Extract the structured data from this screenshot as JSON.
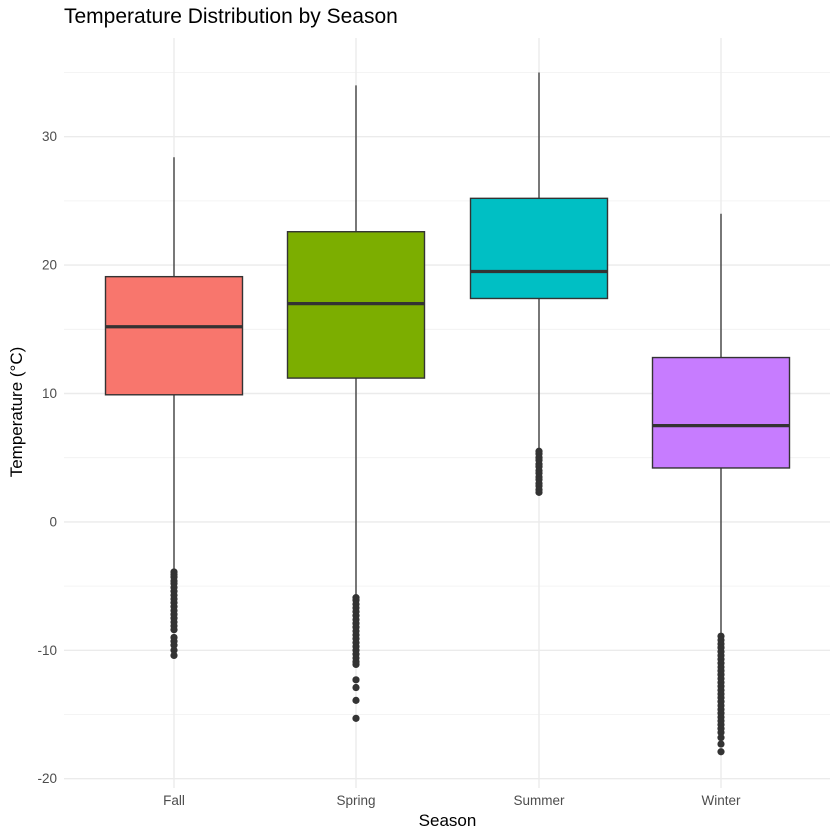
{
  "chart_data": {
    "type": "boxplot",
    "title": "Temperature Distribution by Season",
    "xlabel": "Season",
    "ylabel": "Temperature (°C)",
    "categories": [
      "Fall",
      "Spring",
      "Summer",
      "Winter"
    ],
    "ylim": [
      -20,
      35
    ],
    "yticks": [
      -20,
      -10,
      0,
      10,
      20,
      30
    ],
    "ytick_labels": [
      "-20",
      "-10",
      "0",
      "10",
      "20",
      "30"
    ],
    "grid": true,
    "legend": "none",
    "series": [
      {
        "category": "Fall",
        "color": "#F8766D",
        "whisker_low": -3.8,
        "q1": 9.9,
        "median": 15.2,
        "q3": 19.1,
        "whisker_high": 28.4,
        "outliers": [
          -3.9,
          -4.1,
          -4.3,
          -4.6,
          -4.8,
          -5.1,
          -5.4,
          -5.7,
          -6.0,
          -6.3,
          -6.6,
          -6.9,
          -7.2,
          -7.5,
          -7.8,
          -8.1,
          -8.4,
          -9.0,
          -9.3,
          -9.6,
          -10.0,
          -10.4
        ]
      },
      {
        "category": "Spring",
        "color": "#7CAE00",
        "whisker_low": -5.8,
        "q1": 11.2,
        "median": 17.0,
        "q3": 22.6,
        "whisker_high": 34.0,
        "outliers": [
          -5.9,
          -6.1,
          -6.4,
          -6.7,
          -7.0,
          -7.3,
          -7.6,
          -7.9,
          -8.2,
          -8.5,
          -8.8,
          -9.1,
          -9.4,
          -9.7,
          -10.0,
          -10.3,
          -10.6,
          -10.9,
          -11.1,
          -12.3,
          -12.9,
          -13.9,
          -15.3
        ]
      },
      {
        "category": "Summer",
        "color": "#00BFC4",
        "whisker_low": 5.7,
        "q1": 17.4,
        "median": 19.5,
        "q3": 25.2,
        "whisker_high": 35.0,
        "outliers": [
          2.3,
          2.5,
          2.8,
          3.0,
          3.3,
          3.5,
          3.8,
          4.0,
          4.3,
          4.5,
          4.8,
          5.0,
          5.3,
          5.5
        ]
      },
      {
        "category": "Winter",
        "color": "#C77CFF",
        "whisker_low": -8.8,
        "q1": 4.2,
        "median": 7.5,
        "q3": 12.8,
        "whisker_high": 24.0,
        "outliers": [
          -8.9,
          -9.2,
          -9.5,
          -9.8,
          -10.1,
          -10.4,
          -10.7,
          -11.0,
          -11.3,
          -11.6,
          -11.9,
          -12.2,
          -12.5,
          -12.8,
          -13.1,
          -13.4,
          -13.7,
          -14.0,
          -14.3,
          -14.6,
          -14.9,
          -15.2,
          -15.5,
          -15.8,
          -16.1,
          -16.4,
          -16.8,
          -17.3,
          -17.9
        ]
      }
    ]
  }
}
